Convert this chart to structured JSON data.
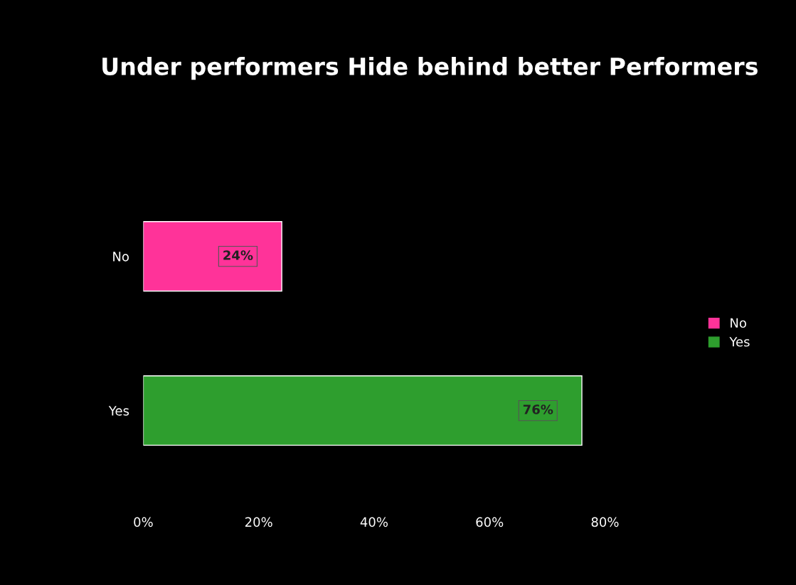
{
  "chart_data": {
    "type": "bar",
    "orientation": "horizontal",
    "title": "Under performers Hide behind better Performers",
    "categories": [
      "No",
      "Yes"
    ],
    "series": [
      {
        "name": "No",
        "color": "#ff3399",
        "values": [
          24,
          null
        ],
        "value_labels": [
          "24%",
          null
        ]
      },
      {
        "name": "Yes",
        "color": "#2e9e2e",
        "values": [
          null,
          76
        ],
        "value_labels": [
          null,
          "76%"
        ]
      }
    ],
    "xlim": [
      0,
      80
    ],
    "xticks": [
      {
        "value": 0,
        "label": "0%"
      },
      {
        "value": 20,
        "label": "20%"
      },
      {
        "value": 40,
        "label": "40%"
      },
      {
        "value": 60,
        "label": "60%"
      },
      {
        "value": 80,
        "label": "80%"
      }
    ],
    "grid": false,
    "legend": "right"
  }
}
